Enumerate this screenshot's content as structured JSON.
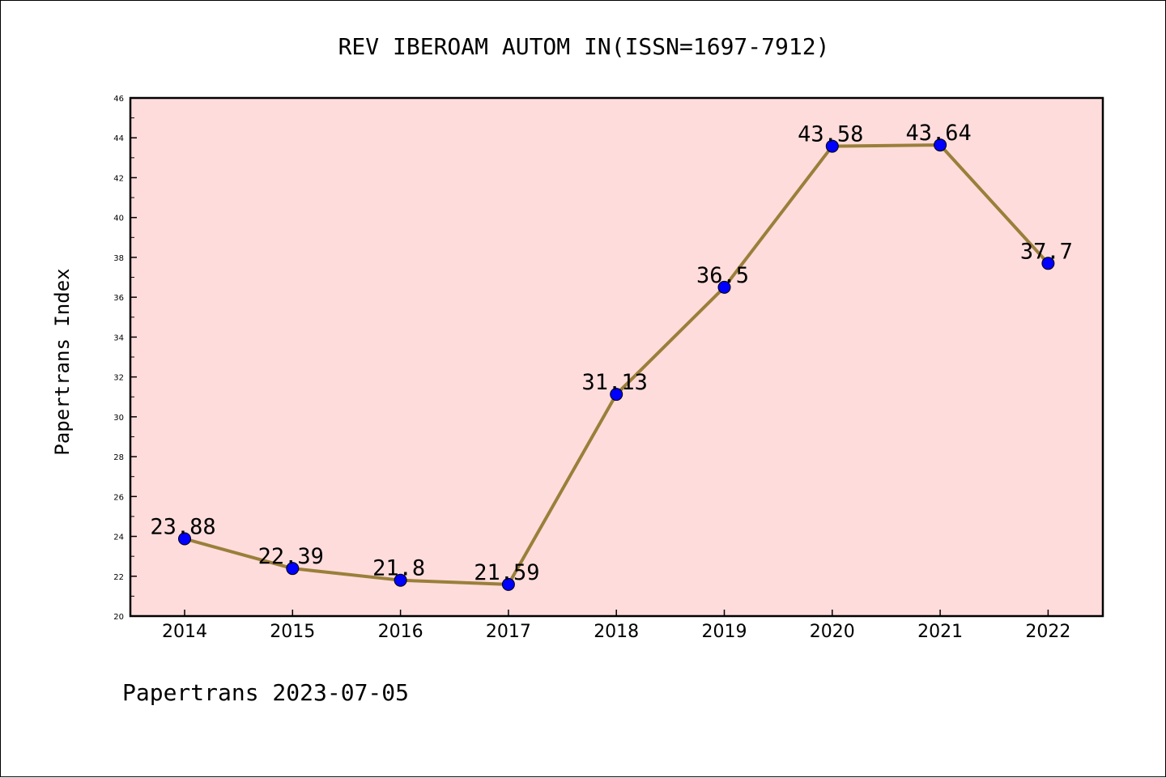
{
  "chart_data": {
    "type": "line",
    "title": "REV IBEROAM AUTOM IN(ISSN=1697-7912)",
    "xlabel": "",
    "ylabel": "Papertrans Index",
    "footer": "Papertrans 2023-07-05",
    "categories": [
      "2014",
      "2015",
      "2016",
      "2017",
      "2018",
      "2019",
      "2020",
      "2021",
      "2022"
    ],
    "series": [
      {
        "values": [
          23.88,
          22.39,
          21.8,
          21.59,
          31.13,
          36.5,
          43.58,
          43.64,
          37.7
        ],
        "labels": [
          "23.88",
          "22.39",
          "21.8",
          "21.59",
          "31.13",
          "36.5",
          "43.58",
          "43.64",
          "37.7"
        ]
      }
    ],
    "ylim": [
      20,
      46
    ],
    "yticks": [
      "20",
      "22",
      "24",
      "26",
      "28",
      "30",
      "32",
      "34",
      "36",
      "38",
      "40",
      "42",
      "44",
      "46"
    ],
    "grid": false,
    "legend": "none",
    "colors": {
      "plot_background": "#ffdcdc",
      "line": "#9a7f3a",
      "marker": "#0000ff"
    }
  }
}
